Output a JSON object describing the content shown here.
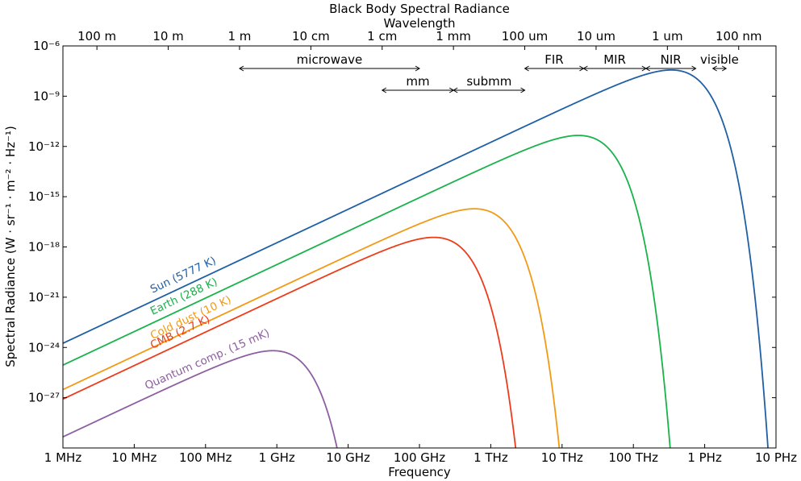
{
  "chart_data": {
    "type": "line",
    "title": "Black Body Spectral Radiance",
    "xlabel": "Frequency",
    "ylabel": "Spectral Radiance (W · sr⁻¹ · m⁻² · Hz⁻¹)",
    "top_axis_label": "Wavelength",
    "x_scale": "log",
    "y_scale": "log",
    "xlim": [
      1000000.0,
      1e+16
    ],
    "ylim": [
      1e-30,
      1e-06
    ],
    "grid": false,
    "x_ticks": [
      {
        "value": 1000000.0,
        "label": "1 MHz"
      },
      {
        "value": 10000000.0,
        "label": "10 MHz"
      },
      {
        "value": 100000000.0,
        "label": "100 MHz"
      },
      {
        "value": 1000000000.0,
        "label": "1 GHz"
      },
      {
        "value": 10000000000.0,
        "label": "10 GHz"
      },
      {
        "value": 100000000000.0,
        "label": "100 GHz"
      },
      {
        "value": 1000000000000.0,
        "label": "1 THz"
      },
      {
        "value": 10000000000000.0,
        "label": "10 THz"
      },
      {
        "value": 100000000000000.0,
        "label": "100 THz"
      },
      {
        "value": 1000000000000000.0,
        "label": "1 PHz"
      },
      {
        "value": 1e+16,
        "label": "10 PHz"
      }
    ],
    "y_ticks": [
      {
        "value": 1e-06,
        "label": "10⁻⁶"
      },
      {
        "value": 1e-09,
        "label": "10⁻⁹"
      },
      {
        "value": 1e-12,
        "label": "10⁻¹²"
      },
      {
        "value": 1e-15,
        "label": "10⁻¹⁵"
      },
      {
        "value": 1e-18,
        "label": "10⁻¹⁸"
      },
      {
        "value": 1e-21,
        "label": "10⁻²¹"
      },
      {
        "value": 1e-24,
        "label": "10⁻²⁴"
      },
      {
        "value": 1e-27,
        "label": "10⁻²⁷"
      }
    ],
    "wavelength_ticks": [
      {
        "wavelength_m": 100,
        "label": "100 m"
      },
      {
        "wavelength_m": 10,
        "label": "10 m"
      },
      {
        "wavelength_m": 1,
        "label": "1 m"
      },
      {
        "wavelength_m": 0.1,
        "label": "10 cm"
      },
      {
        "wavelength_m": 0.01,
        "label": "1 cm"
      },
      {
        "wavelength_m": 0.001,
        "label": "1 mm"
      },
      {
        "wavelength_m": 0.0001,
        "label": "100 um"
      },
      {
        "wavelength_m": 1e-05,
        "label": "10 um"
      },
      {
        "wavelength_m": 1e-06,
        "label": "1 um"
      },
      {
        "wavelength_m": 1e-07,
        "label": "100 nm"
      }
    ],
    "bands": [
      {
        "label": "microwave",
        "from_hz": 300000000.0,
        "to_hz": 100000000000.0,
        "row": 1
      },
      {
        "label": "FIR",
        "from_hz": 3000000000000.0,
        "to_hz": 20000000000000.0,
        "row": 1
      },
      {
        "label": "MIR",
        "from_hz": 20000000000000.0,
        "to_hz": 150000000000000.0,
        "row": 1
      },
      {
        "label": "NIR",
        "from_hz": 150000000000000.0,
        "to_hz": 750000000000000.0,
        "row": 1
      },
      {
        "label": "visible",
        "from_hz": 1300000000000000.0,
        "to_hz": 2000000000000000.0,
        "row": 1
      },
      {
        "label": "mm",
        "from_hz": 30000000000.0,
        "to_hz": 300000000000.0,
        "row": 2
      },
      {
        "label": "submm",
        "from_hz": 300000000000.0,
        "to_hz": 3000000000000.0,
        "row": 2
      }
    ],
    "series": [
      {
        "name": "Sun (5777 K)",
        "temperature_k": 5777,
        "color": "#1f5fa6"
      },
      {
        "name": "Earth (288 K)",
        "temperature_k": 288,
        "color": "#19b24b"
      },
      {
        "name": "Cold dust (10 K)",
        "temperature_k": 10,
        "color": "#f29a14"
      },
      {
        "name": "CMB (2.7 K)",
        "temperature_k": 2.7,
        "color": "#ee3b1a"
      },
      {
        "name": "Quantum comp. (15 mK)",
        "temperature_k": 0.015,
        "color": "#8d5fa1"
      }
    ]
  }
}
